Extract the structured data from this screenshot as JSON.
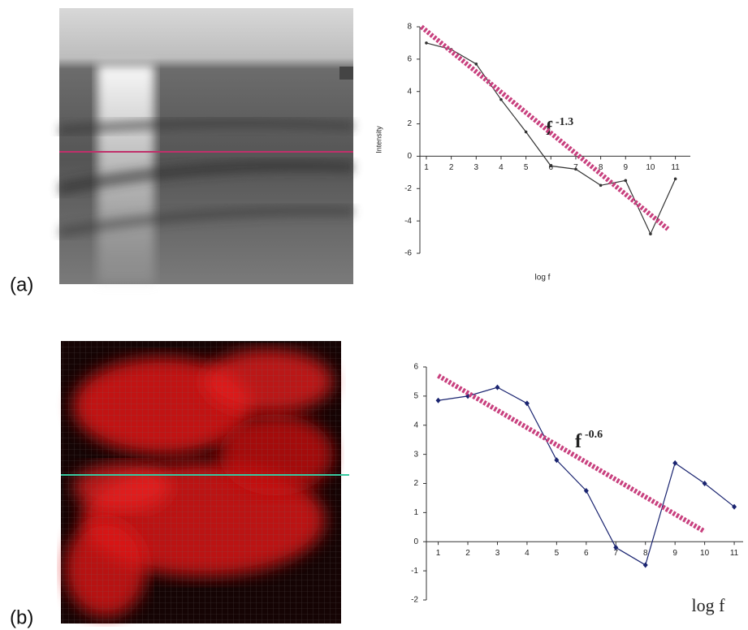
{
  "chart_data": [
    {
      "type": "line",
      "panel_label": "(a)",
      "ylabel": "Intensity",
      "xlabel": "log f",
      "annotation": {
        "base": "f",
        "exponent": "-1.3"
      },
      "xlim": [
        0.74,
        11.6
      ],
      "ylim": [
        -6,
        8
      ],
      "xticks": [
        1,
        2,
        3,
        4,
        5,
        6,
        7,
        8,
        9,
        10,
        11
      ],
      "yticks": [
        -6,
        -4,
        -2,
        0,
        2,
        4,
        6,
        8
      ],
      "series": [
        {
          "x": [
            1,
            2,
            3,
            4,
            5,
            6,
            7,
            8,
            9,
            10,
            11
          ],
          "values": [
            7.0,
            6.6,
            5.7,
            3.5,
            1.5,
            -0.6,
            -0.8,
            -1.8,
            -1.5,
            -4.8,
            -1.4
          ],
          "color": "#333333",
          "marker": "circle"
        },
        {
          "x": [
            0.8,
            10.7
          ],
          "values": [
            8,
            -4.5
          ],
          "color": "#c8407e",
          "style": "dashed"
        }
      ]
    },
    {
      "type": "line",
      "panel_label": "(b)",
      "xlabel": "log f",
      "annotation": {
        "base": "f",
        "exponent": "-0.6"
      },
      "xlim": [
        0.6,
        11.3
      ],
      "ylim": [
        -2,
        6
      ],
      "xticks": [
        1,
        2,
        3,
        4,
        5,
        6,
        7,
        8,
        9,
        10,
        11
      ],
      "yticks": [
        -2,
        -1,
        0,
        1,
        2,
        3,
        4,
        5,
        6
      ],
      "series": [
        {
          "x": [
            1,
            2,
            3,
            4,
            5,
            6,
            7,
            8,
            9,
            10,
            11
          ],
          "values": [
            4.85,
            5.0,
            5.3,
            4.75,
            2.8,
            1.75,
            -0.2,
            -0.8,
            2.7,
            2.0,
            1.2
          ],
          "color": "#1a2470",
          "marker": "diamond"
        },
        {
          "x": [
            1,
            10
          ],
          "values": [
            5.7,
            0.35
          ],
          "color": "#c8407e",
          "style": "dashed"
        }
      ]
    }
  ]
}
